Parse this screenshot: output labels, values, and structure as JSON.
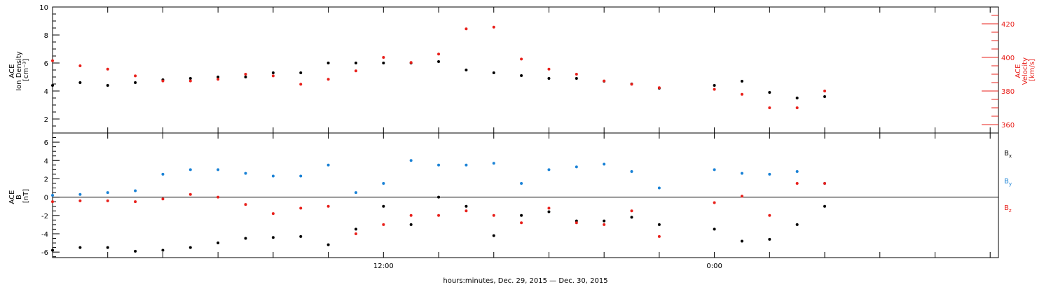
{
  "footer_label": "hours:minutes, Dec. 29, 2015 — Dec. 30, 2015",
  "x_tick_labels": [
    "12:00",
    "0:00"
  ],
  "colors": {
    "black": "#000000",
    "red": "#e8201b",
    "blue": "#1a82d6"
  },
  "chart_data": [
    {
      "type": "scatter",
      "panel": "top",
      "ylabel": "ACE Ion Density [cm⁻³]",
      "ylabel_lines": [
        "ACE",
        "Ion Density",
        "[cm⁻³]"
      ],
      "ylim": [
        1.0,
        10.0
      ],
      "yticks": [
        2,
        4,
        6,
        8,
        10
      ],
      "y2label": "ACE Velocity [km/s]",
      "y2label_lines": [
        "ACE",
        "Velocity",
        "[km/s]"
      ],
      "y2lim": [
        355,
        430
      ],
      "y2ticks": [
        360,
        380,
        400,
        420
      ],
      "xlim_hours": [
        0,
        34.3
      ],
      "series": [
        {
          "color": "black",
          "x": [
            0,
            1,
            2,
            3,
            4,
            5,
            6,
            7,
            8,
            9,
            10,
            11,
            12,
            13,
            14,
            15,
            16,
            17,
            18,
            19,
            20,
            21,
            22,
            24,
            25,
            26,
            27,
            28
          ],
          "y": [
            4.4,
            4.6,
            4.4,
            4.6,
            4.8,
            4.9,
            5.0,
            5.0,
            5.3,
            5.3,
            6.0,
            6.0,
            6.0,
            6.0,
            6.1,
            5.5,
            5.3,
            5.1,
            4.9,
            4.9,
            4.7,
            4.5,
            4.2,
            4.4,
            4.7,
            3.9,
            3.5,
            3.6
          ]
        },
        {
          "color": "red",
          "axis": "right",
          "x": [
            0,
            1,
            2,
            3,
            4,
            5,
            6,
            7,
            8,
            9,
            10,
            11,
            12,
            13,
            14,
            15,
            16,
            17,
            18,
            19,
            20,
            21,
            22,
            24,
            25,
            26,
            27,
            28
          ],
          "y": [
            398,
            395,
            393,
            389,
            386,
            386,
            387,
            390,
            389,
            384,
            387,
            392,
            400,
            397,
            402,
            417,
            418,
            399,
            393,
            390,
            386,
            384,
            382,
            381,
            378,
            370,
            370,
            380
          ]
        }
      ]
    },
    {
      "type": "scatter",
      "panel": "bottom",
      "ylabel": "ACE B [nT]",
      "ylabel_lines": [
        "ACE",
        "B",
        "[nT]"
      ],
      "ylim": [
        -6.6,
        7.0
      ],
      "yticks": [
        -6,
        -4,
        -2,
        0,
        2,
        4,
        6
      ],
      "xlim_hours": [
        0,
        34.3
      ],
      "series": [
        {
          "name": "Bx",
          "name_main": "B",
          "name_sub": "x",
          "color": "black",
          "x": [
            0,
            1,
            2,
            3,
            4,
            5,
            6,
            7,
            8,
            9,
            10,
            11,
            12,
            13,
            14,
            15,
            16,
            17,
            18,
            19,
            20,
            21,
            22,
            24,
            25,
            26,
            27,
            28
          ],
          "y": [
            -5.8,
            -5.5,
            -5.5,
            -5.9,
            -5.8,
            -5.5,
            -5.0,
            -4.5,
            -4.4,
            -4.3,
            -5.2,
            -3.5,
            -1.0,
            -3.0,
            0.0,
            -1.0,
            -4.2,
            -2.0,
            -1.6,
            -2.6,
            -2.6,
            -2.2,
            -3.0,
            -3.5,
            -4.8,
            -4.6,
            -3.0,
            -1.0
          ]
        },
        {
          "name": "By",
          "name_main": "B",
          "name_sub": "y",
          "color": "blue",
          "x": [
            0,
            1,
            2,
            3,
            4,
            5,
            6,
            7,
            8,
            9,
            10,
            11,
            12,
            13,
            14,
            15,
            16,
            17,
            18,
            19,
            20,
            21,
            22,
            24,
            25,
            26,
            27,
            28
          ],
          "y": [
            0.2,
            0.3,
            0.5,
            0.7,
            2.5,
            3.0,
            3.0,
            2.6,
            2.3,
            2.3,
            3.5,
            0.5,
            1.5,
            4.0,
            3.5,
            3.5,
            3.7,
            1.5,
            3.0,
            3.3,
            3.6,
            2.8,
            1.0,
            3.0,
            2.6,
            2.5,
            2.8,
            1.5
          ]
        },
        {
          "name": "Bz",
          "name_main": "B",
          "name_sub": "z",
          "color": "red",
          "x": [
            0,
            1,
            2,
            3,
            4,
            5,
            6,
            7,
            8,
            9,
            10,
            11,
            12,
            13,
            14,
            15,
            16,
            17,
            18,
            19,
            20,
            21,
            22,
            24,
            25,
            26,
            27,
            28
          ],
          "y": [
            -0.5,
            -0.4,
            -0.4,
            -0.5,
            -0.2,
            0.3,
            0.0,
            -0.8,
            -1.8,
            -1.2,
            -1.0,
            -4.0,
            -3.0,
            -2.0,
            -2.0,
            -1.5,
            -2.0,
            -2.8,
            -1.2,
            -2.8,
            -3.0,
            -1.5,
            -4.3,
            -0.6,
            0.1,
            -2.0,
            1.5,
            1.5
          ]
        }
      ]
    }
  ]
}
